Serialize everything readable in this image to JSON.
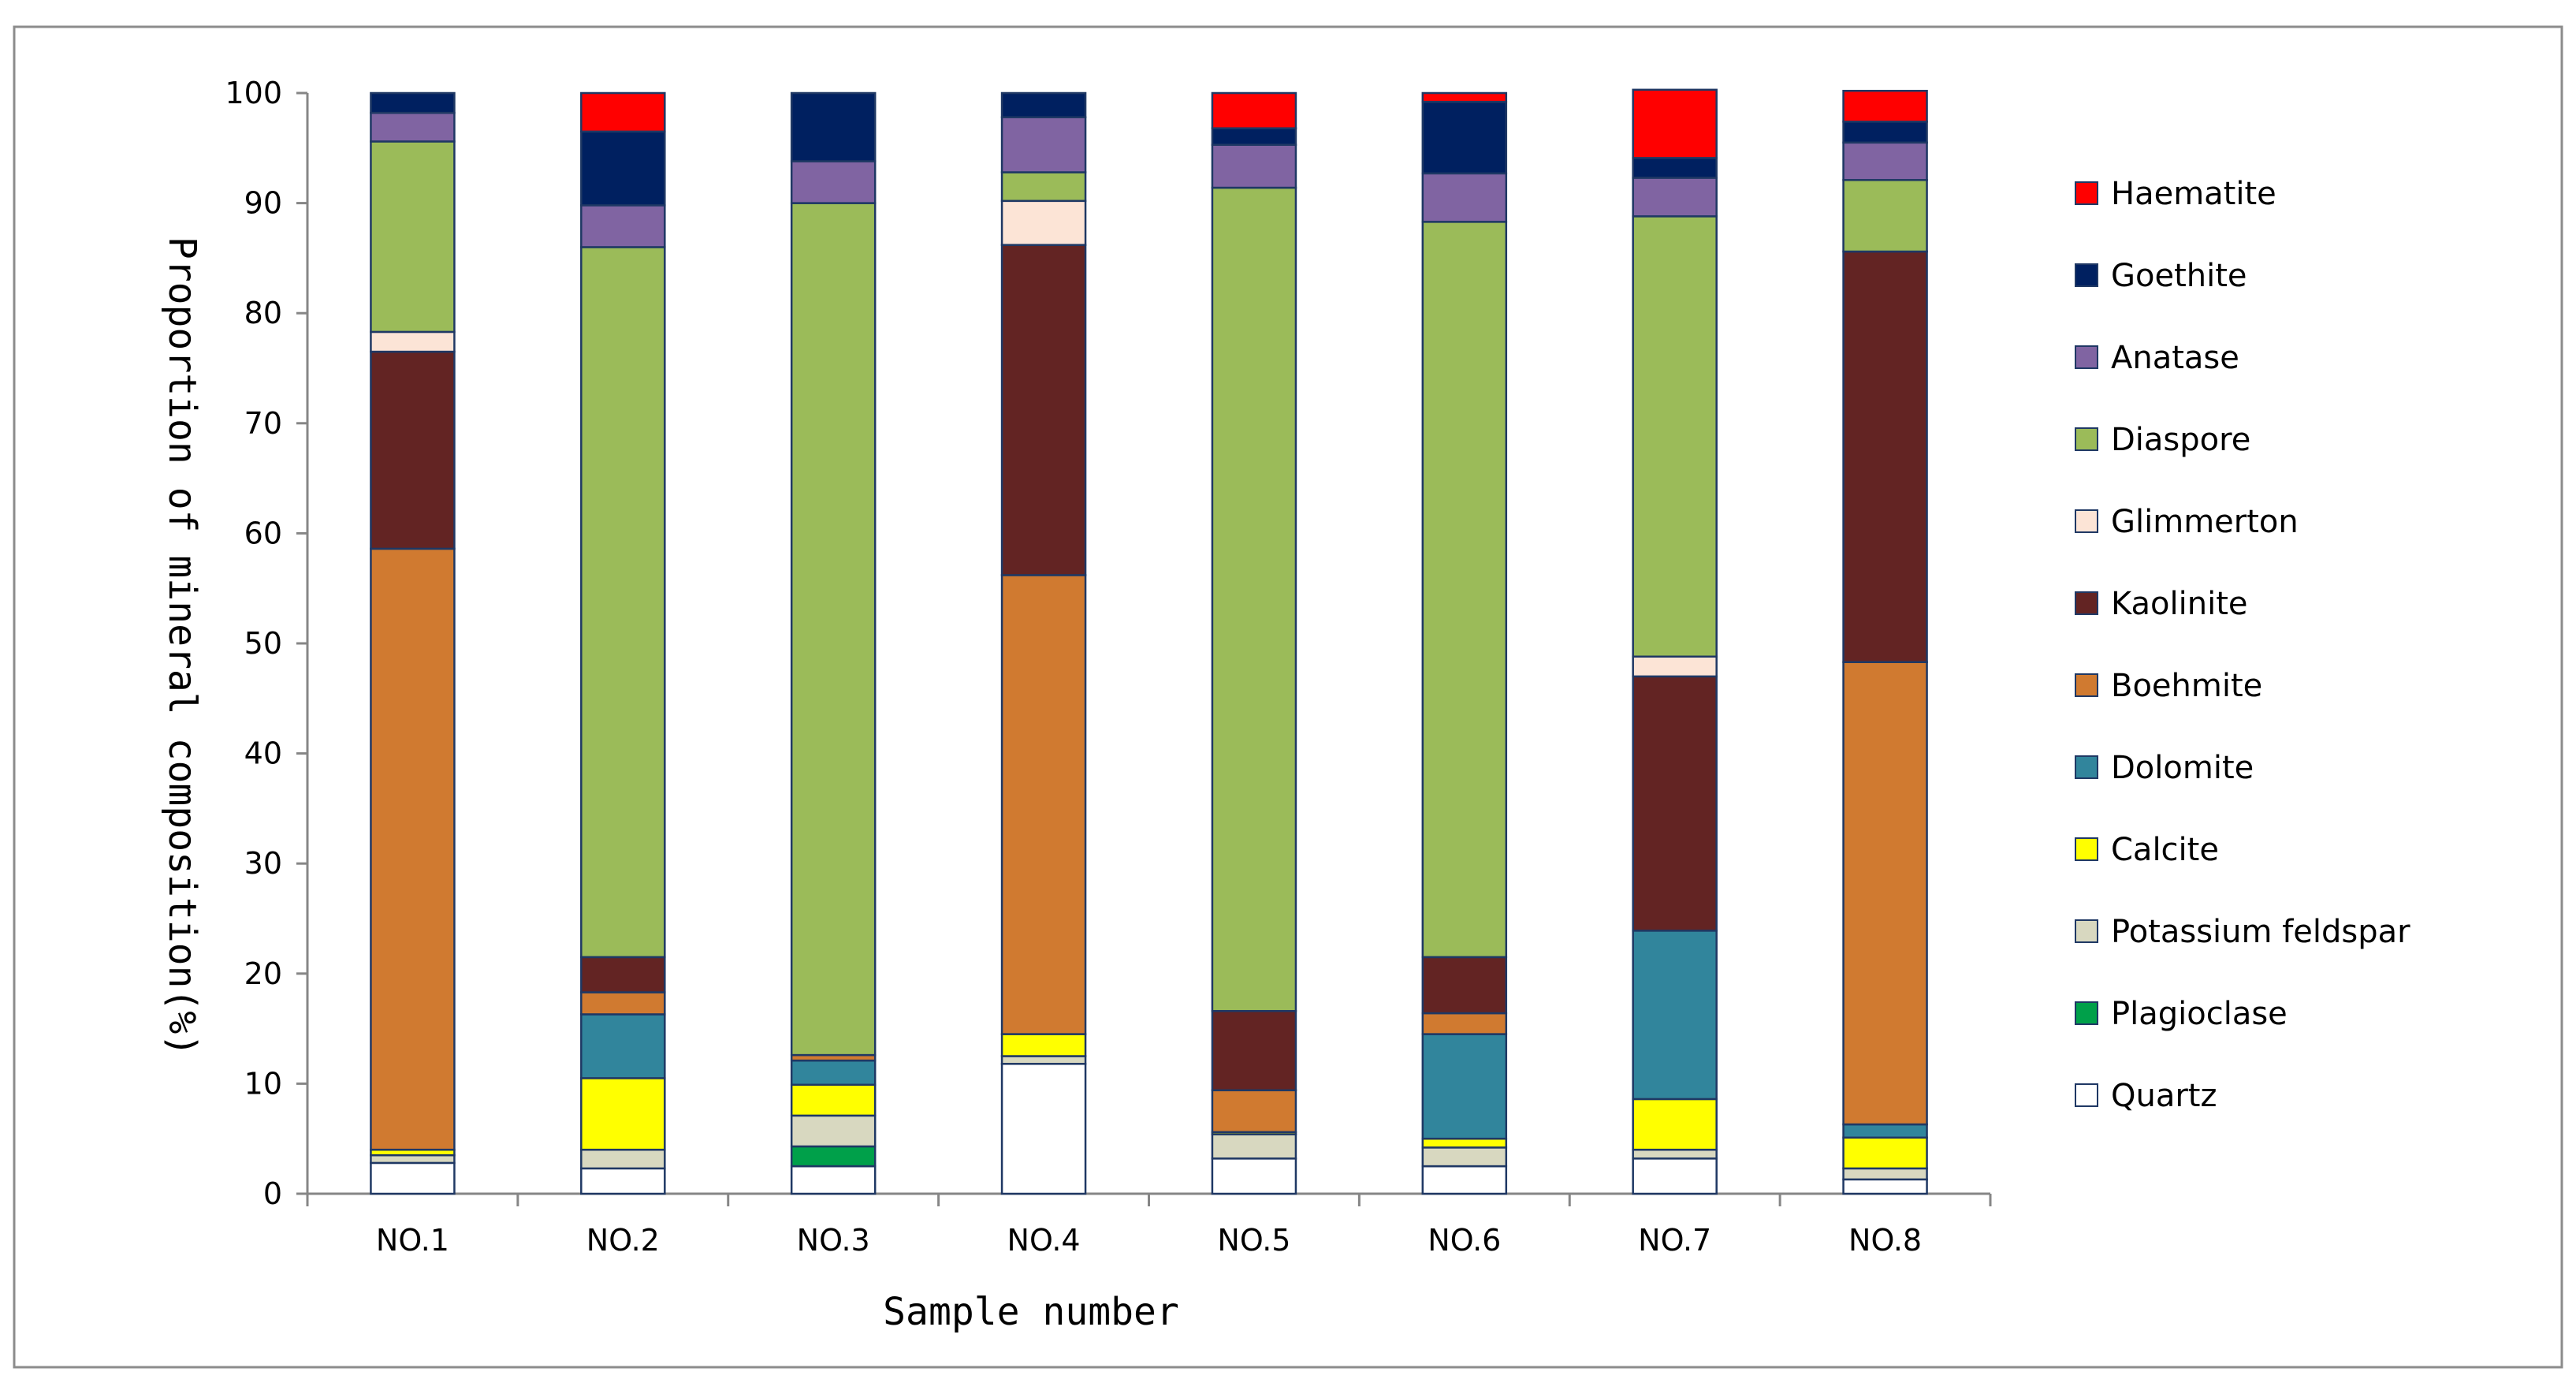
{
  "chart_data": {
    "type": "bar",
    "stacked": true,
    "title": "",
    "xlabel": "Sample number",
    "ylabel": "Proportion of mineral composition(%)",
    "ylim": [
      0,
      100
    ],
    "yticks": [
      0,
      10,
      20,
      30,
      40,
      50,
      60,
      70,
      80,
      90,
      100
    ],
    "categories": [
      "NO.1",
      "NO.2",
      "NO.3",
      "NO.4",
      "NO.5",
      "NO.6",
      "NO.7",
      "NO.8"
    ],
    "legend_position": "right",
    "series": [
      {
        "name": "Quartz",
        "color": "#ffffff",
        "values": [
          2.8,
          2.3,
          2.5,
          11.8,
          3.2,
          2.5,
          3.2,
          1.3
        ]
      },
      {
        "name": "Plagioclase",
        "color": "#00a04a",
        "values": [
          0,
          0,
          1.8,
          0,
          0,
          0,
          0,
          0
        ]
      },
      {
        "name": "Potassium feldspar",
        "color": "#d8d8c0",
        "values": [
          0.7,
          1.7,
          2.8,
          0.7,
          2.2,
          1.7,
          0.8,
          1.0
        ]
      },
      {
        "name": "Calcite",
        "color": "#ffff00",
        "values": [
          0.5,
          6.5,
          2.8,
          2.0,
          0.2,
          0.8,
          4.6,
          2.8
        ]
      },
      {
        "name": "Dolomite",
        "color": "#31859c",
        "values": [
          0,
          5.8,
          2.2,
          0,
          0,
          9.5,
          15.3,
          1.2
        ]
      },
      {
        "name": "Boehmite",
        "color": "#d07a30",
        "values": [
          54.6,
          2.0,
          0.5,
          41.7,
          3.8,
          1.9,
          0,
          42.0
        ]
      },
      {
        "name": "Kaolinite",
        "color": "#632423",
        "values": [
          17.9,
          3.2,
          0,
          30.0,
          7.2,
          5.1,
          23.1,
          37.3
        ]
      },
      {
        "name": "Glimmerton",
        "color": "#fce4d6",
        "values": [
          1.8,
          0,
          0,
          4.0,
          0,
          0,
          1.8,
          0
        ]
      },
      {
        "name": "Diaspore",
        "color": "#9bbb59",
        "values": [
          17.3,
          64.5,
          77.4,
          2.6,
          74.8,
          66.8,
          40.0,
          6.5
        ]
      },
      {
        "name": "Anatase",
        "color": "#8064a2",
        "values": [
          2.6,
          3.8,
          3.8,
          5.0,
          3.9,
          4.4,
          3.5,
          3.4
        ]
      },
      {
        "name": "Goethite",
        "color": "#002060",
        "values": [
          1.8,
          6.7,
          6.2,
          2.2,
          1.5,
          6.5,
          1.8,
          1.9
        ]
      },
      {
        "name": "Haematite",
        "color": "#ff0000",
        "values": [
          0,
          3.5,
          0,
          0,
          3.2,
          0.8,
          6.2,
          2.8
        ]
      }
    ]
  }
}
